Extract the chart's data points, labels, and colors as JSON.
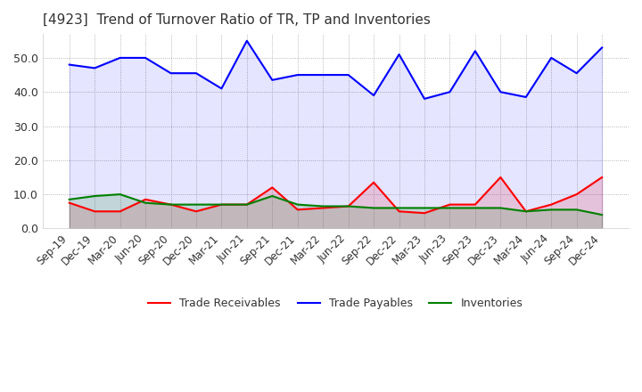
{
  "title": "[4923]  Trend of Turnover Ratio of TR, TP and Inventories",
  "x_labels": [
    "Sep-19",
    "Dec-19",
    "Mar-20",
    "Jun-20",
    "Sep-20",
    "Dec-20",
    "Mar-21",
    "Jun-21",
    "Sep-21",
    "Dec-21",
    "Mar-22",
    "Jun-22",
    "Sep-22",
    "Dec-22",
    "Mar-23",
    "Jun-23",
    "Sep-23",
    "Dec-23",
    "Mar-24",
    "Jun-24",
    "Sep-24",
    "Dec-24"
  ],
  "trade_receivables": [
    7.5,
    5.0,
    5.0,
    8.5,
    7.0,
    5.0,
    7.0,
    7.0,
    12.0,
    5.5,
    6.0,
    6.5,
    13.5,
    5.0,
    4.5,
    7.0,
    7.0,
    15.0,
    5.0,
    7.0,
    10.0,
    15.0
  ],
  "trade_payables": [
    48.0,
    47.0,
    50.0,
    50.0,
    45.5,
    45.5,
    41.0,
    55.0,
    43.5,
    45.0,
    45.0,
    45.0,
    39.0,
    51.0,
    38.0,
    40.0,
    52.0,
    40.0,
    38.5,
    50.0,
    45.5,
    53.0
  ],
  "inventories": [
    8.5,
    9.5,
    10.0,
    7.5,
    7.0,
    7.0,
    7.0,
    7.0,
    9.5,
    7.0,
    6.5,
    6.5,
    6.0,
    6.0,
    6.0,
    6.0,
    6.0,
    6.0,
    5.0,
    5.5,
    5.5,
    4.0
  ],
  "tr_color": "#ff0000",
  "tp_color": "#0000ff",
  "inv_color": "#008000",
  "tr_label": "Trade Receivables",
  "tp_label": "Trade Payables",
  "inv_label": "Inventories",
  "ylim": [
    0.0,
    57.0
  ],
  "yticks": [
    0.0,
    10.0,
    20.0,
    30.0,
    40.0,
    50.0
  ],
  "background_color": "#ffffff",
  "grid_color": "#999999",
  "title_fontsize": 11,
  "title_color": "#333333",
  "tick_color": "#333333",
  "linewidth": 1.5,
  "legend_fontsize": 9,
  "tick_fontsize": 8.5,
  "ytick_fontsize": 9
}
